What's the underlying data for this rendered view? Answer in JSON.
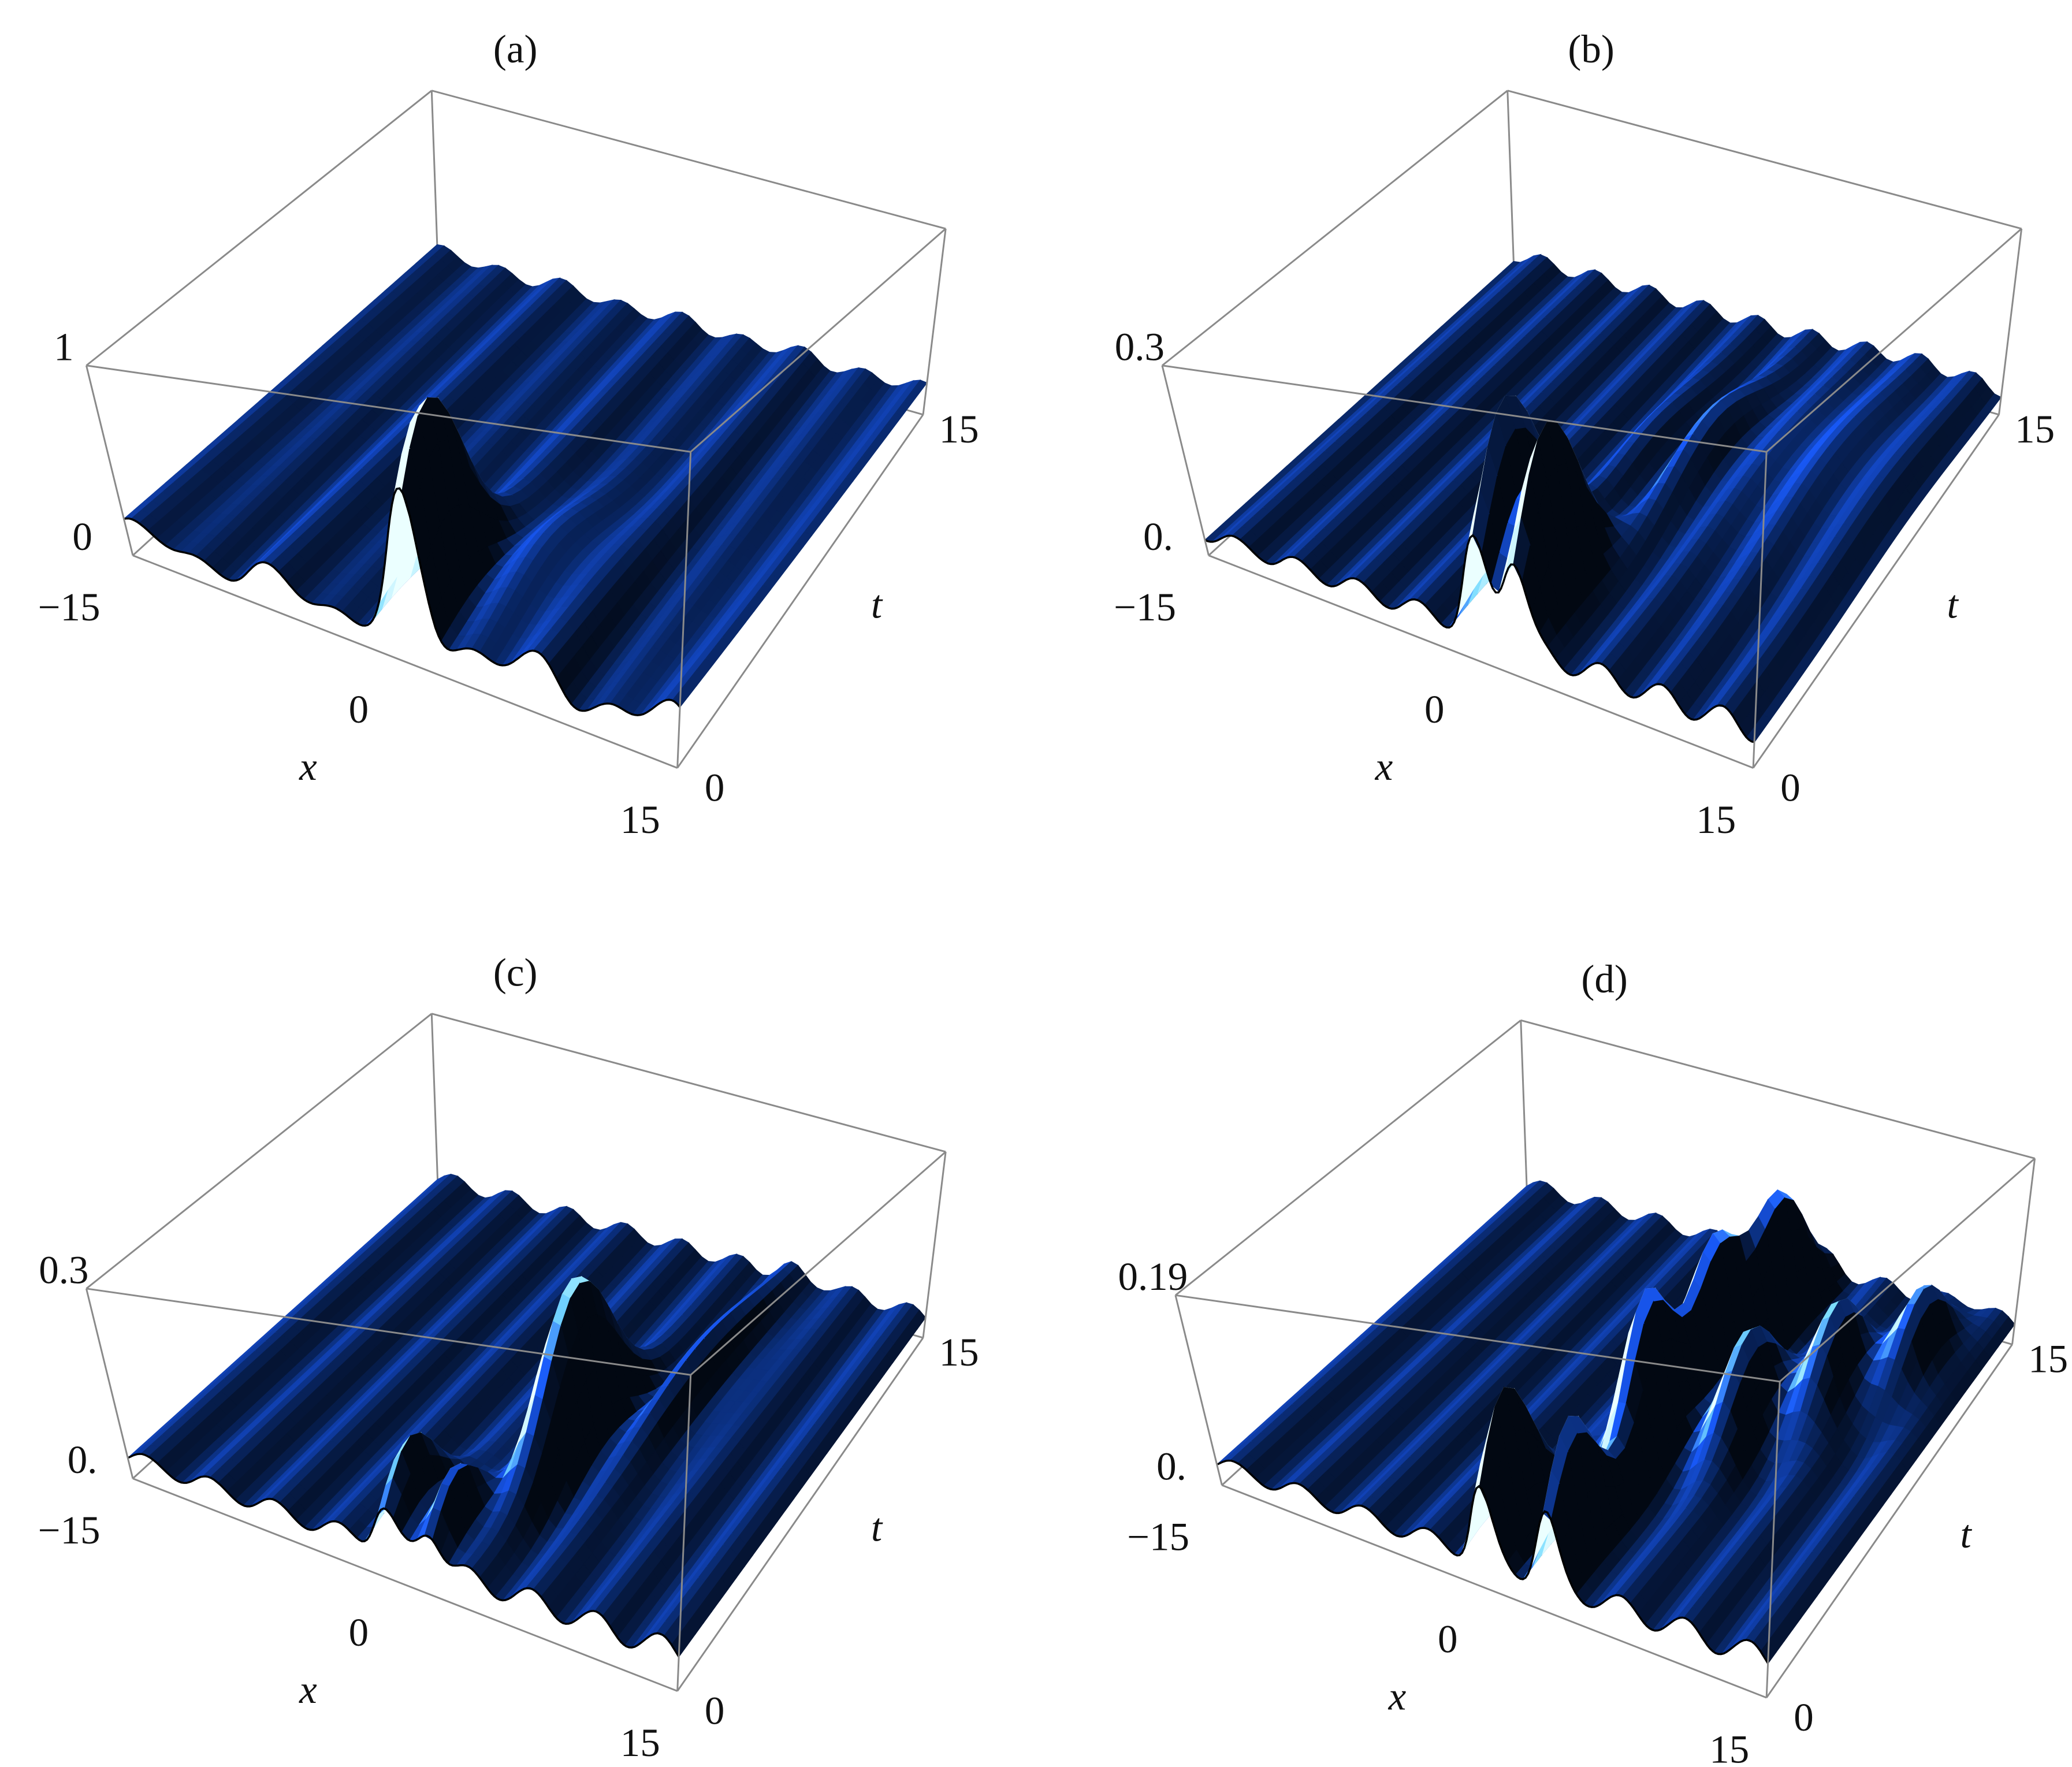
{
  "panels": [
    {
      "label": "(a)",
      "z_ticks": [
        "1",
        "0"
      ],
      "x_ticks": [
        "−15",
        "0",
        "15"
      ],
      "x_label": "x",
      "t_ticks": [
        "0",
        "15"
      ],
      "t_label": "t"
    },
    {
      "label": "(b)",
      "z_ticks": [
        "0.3",
        "0."
      ],
      "x_ticks": [
        "−15",
        "0",
        "15"
      ],
      "x_label": "x",
      "t_ticks": [
        "0",
        "15"
      ],
      "t_label": "t"
    },
    {
      "label": "(c)",
      "z_ticks": [
        "0.3",
        "0."
      ],
      "x_ticks": [
        "−15",
        "0",
        "15"
      ],
      "x_label": "x",
      "t_ticks": [
        "0",
        "15"
      ],
      "t_label": "t"
    },
    {
      "label": "(d)",
      "z_ticks": [
        "0.19",
        "0."
      ],
      "x_ticks": [
        "−15",
        "0",
        "15"
      ],
      "x_label": "x",
      "t_ticks": [
        "0",
        "15"
      ],
      "t_label": "t"
    }
  ]
}
